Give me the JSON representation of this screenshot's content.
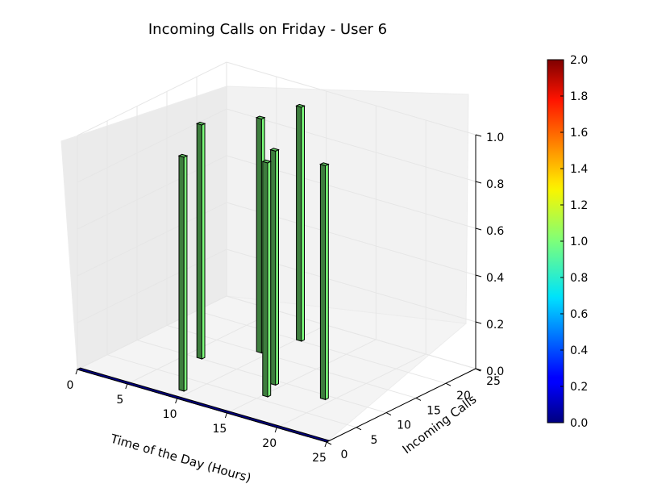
{
  "chart_data": {
    "type": "bar3d",
    "title": "Incoming Calls on Friday - User 6",
    "xlabel": "Time of the Day (Hours)",
    "ylabel": "Incoming Calls",
    "zlabel": "",
    "xlim": [
      0,
      25
    ],
    "ylim": [
      0,
      25
    ],
    "zlim": [
      0,
      1
    ],
    "x_ticks": [
      "0",
      "5",
      "10",
      "15",
      "20",
      "25"
    ],
    "y_ticks": [
      "0",
      "5",
      "10",
      "15",
      "20",
      "25"
    ],
    "z_ticks": [
      "0.0",
      "0.2",
      "0.4",
      "0.6",
      "0.8",
      "1.0"
    ],
    "grid": true,
    "bars": [
      {
        "x": 9,
        "y": 2,
        "z": 1
      },
      {
        "x": 15,
        "y": 6,
        "z": 1
      },
      {
        "x": 19,
        "y": 9,
        "z": 1
      },
      {
        "x": 14,
        "y": 9,
        "z": 1
      },
      {
        "x": 6,
        "y": 10,
        "z": 1
      },
      {
        "x": 9,
        "y": 15,
        "z": 1
      },
      {
        "x": 10,
        "y": 20,
        "z": 1
      }
    ],
    "baseline_row": {
      "y": 0,
      "x_from": 0,
      "x_to": 24,
      "value": 0
    },
    "colorbar": {
      "min": 0.0,
      "max": 2.0,
      "ticks": [
        "0.0",
        "0.2",
        "0.4",
        "0.6",
        "0.8",
        "1.0",
        "1.2",
        "1.4",
        "1.6",
        "1.8",
        "2.0"
      ],
      "colormap": "jet"
    },
    "colors": {
      "bar_front": "#3e7e3e",
      "bar_side": "#7cff7a",
      "bar_top": "#62c862",
      "baseline": "#00007f"
    }
  }
}
